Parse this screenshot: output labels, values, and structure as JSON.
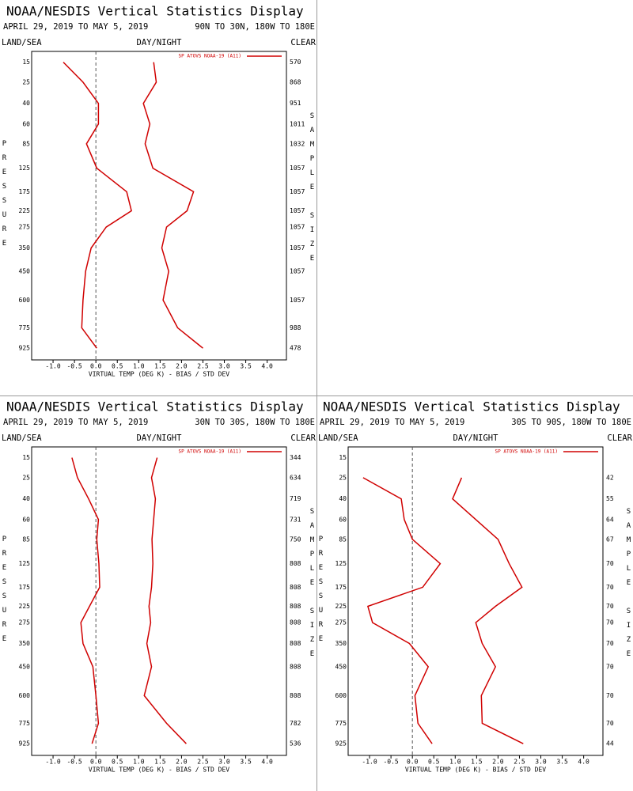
{
  "chart_data": [
    {
      "type": "line",
      "title": "NOAA/NESDIS Vertical Statistics Display",
      "subtitle": "APRIL 29, 2019 TO MAY 5, 2019",
      "region": "90N TO 30N, 180W TO 180E",
      "headers": [
        "LAND/SEA",
        "DAY/NIGHT",
        "CLEAR"
      ],
      "ylabel": "PRESSURE",
      "y2label": "SAMPLE SIZE",
      "xlabel": "VIRTUAL TEMP (DEG K) - BIAS / STD DEV",
      "y": [
        15,
        25,
        40,
        60,
        85,
        125,
        175,
        225,
        275,
        350,
        450,
        600,
        775,
        925
      ],
      "sample_size": [
        570,
        868,
        951,
        1011,
        1032,
        1057,
        1057,
        1057,
        1057,
        1057,
        1057,
        1057,
        988,
        478
      ],
      "series": [
        {
          "name": "SP ATOVS NOAA-19 (A11)",
          "color": "#d00000",
          "values": [
            -0.76,
            -0.3,
            0.06,
            0.06,
            -0.22,
            0.02,
            0.72,
            0.83,
            0.24,
            -0.11,
            -0.24,
            -0.3,
            -0.33,
            0.02
          ],
          "std_dev": [
            1.35,
            1.41,
            1.11,
            1.26,
            1.15,
            1.33,
            2.28,
            2.13,
            1.65,
            1.54,
            1.7,
            1.57,
            1.91,
            2.5
          ]
        }
      ],
      "xlim": [
        -1.5,
        4.45
      ],
      "xticks": [
        {
          "value": -1,
          "label": "-1.0"
        },
        -0.5,
        {
          "value": 0,
          "label": "0.0"
        },
        0.5,
        {
          "value": 1,
          "label": "1.0"
        },
        1.5,
        {
          "value": 2,
          "label": "2.0"
        },
        2.5,
        {
          "value": 3,
          "label": "3.0"
        },
        3.5,
        {
          "value": 4,
          "label": "4.0"
        }
      ],
      "ylim": [
        11,
        1020
      ],
      "yticks": [
        15,
        25,
        40,
        60,
        85,
        125,
        175,
        225,
        275,
        350,
        450,
        600,
        775,
        925
      ],
      "zero_line": true
    },
    {
      "type": "line",
      "title": "NOAA/NESDIS Vertical Statistics Display",
      "subtitle": "APRIL 29, 2019 TO MAY 5, 2019",
      "region": "30N TO 30S, 180W TO 180E",
      "headers": [
        "LAND/SEA",
        "DAY/NIGHT",
        "CLEAR"
      ],
      "ylabel": "PRESSURE",
      "y2label": "SAMPLE SIZE",
      "xlabel": "VIRTUAL TEMP (DEG K) - BIAS / STD DEV",
      "y": [
        15,
        25,
        40,
        60,
        85,
        125,
        175,
        225,
        275,
        350,
        450,
        600,
        775,
        925
      ],
      "sample_size": [
        344,
        634,
        719,
        731,
        750,
        808,
        808,
        808,
        808,
        808,
        808,
        808,
        782,
        536
      ],
      "series": [
        {
          "name": "SP ATOVS NOAA-19 (A11)",
          "color": "#d00000",
          "values": [
            -0.56,
            -0.43,
            -0.17,
            0.06,
            0.02,
            0.07,
            0.09,
            -0.15,
            -0.35,
            -0.3,
            -0.07,
            0.0,
            0.06,
            -0.09
          ],
          "std_dev": [
            1.43,
            1.3,
            1.39,
            1.35,
            1.31,
            1.33,
            1.3,
            1.24,
            1.28,
            1.19,
            1.3,
            1.13,
            1.65,
            2.11
          ]
        }
      ],
      "xlim": [
        -1.5,
        4.45
      ],
      "xticks": [
        {
          "value": -1,
          "label": "-1.0"
        },
        -0.5,
        {
          "value": 0,
          "label": "0.0"
        },
        0.5,
        {
          "value": 1,
          "label": "1.0"
        },
        1.5,
        {
          "value": 2,
          "label": "2.0"
        },
        2.5,
        {
          "value": 3,
          "label": "3.0"
        },
        3.5,
        {
          "value": 4,
          "label": "4.0"
        }
      ],
      "ylim": [
        11,
        1020
      ],
      "yticks": [
        15,
        25,
        40,
        60,
        85,
        125,
        175,
        225,
        275,
        350,
        450,
        600,
        775,
        925
      ],
      "zero_line": true
    },
    {
      "type": "line",
      "title": "NOAA/NESDIS Vertical Statistics Display",
      "subtitle": "APRIL 29, 2019 TO MAY 5, 2019",
      "region": "30S TO 90S, 180W TO 180E",
      "headers": [
        "LAND/SEA",
        "DAY/NIGHT",
        "CLEAR"
      ],
      "ylabel": "PRESSURE",
      "y2label": "SAMPLE SIZE",
      "xlabel": "VIRTUAL TEMP (DEG K) - BIAS / STD DEV",
      "y": [
        15,
        25,
        40,
        60,
        85,
        125,
        175,
        225,
        275,
        350,
        450,
        600,
        775,
        925
      ],
      "sample_size": [
        null,
        42,
        55,
        64,
        67,
        70,
        70,
        70,
        70,
        70,
        70,
        70,
        70,
        44
      ],
      "series": [
        {
          "name": "SP ATOVS NOAA-19 (A11)",
          "color": "#d00000",
          "values": [
            null,
            -1.15,
            -0.26,
            -0.19,
            0.0,
            0.65,
            0.24,
            -1.04,
            -0.93,
            -0.07,
            0.37,
            0.06,
            0.13,
            0.46
          ],
          "std_dev": [
            null,
            1.15,
            0.94,
            1.48,
            2.0,
            2.26,
            2.56,
            1.94,
            1.48,
            1.63,
            1.94,
            1.61,
            1.63,
            2.59
          ]
        }
      ],
      "xlim": [
        -1.5,
        4.45
      ],
      "xticks": [
        {
          "value": -1,
          "label": "-1.0"
        },
        -0.5,
        {
          "value": 0,
          "label": "0.0"
        },
        0.5,
        {
          "value": 1,
          "label": "1.0"
        },
        1.5,
        {
          "value": 2,
          "label": "2.0"
        },
        2.5,
        {
          "value": 3,
          "label": "3.0"
        },
        3.5,
        {
          "value": 4,
          "label": "4.0"
        }
      ],
      "ylim": [
        11,
        1020
      ],
      "yticks": [
        15,
        25,
        40,
        60,
        85,
        125,
        175,
        225,
        275,
        350,
        450,
        600,
        775,
        925
      ],
      "zero_line": true
    }
  ]
}
